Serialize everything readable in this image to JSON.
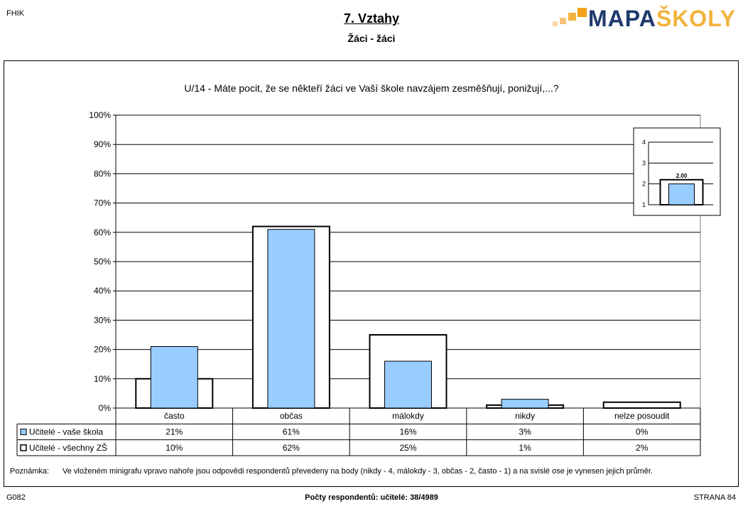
{
  "header": {
    "code": "FHIK",
    "title": "7. Vztahy",
    "subtitle": "Žáci - žáci",
    "logo_part1": "MAPA",
    "logo_part2": "ŠKOLY"
  },
  "question": "U/14 - Máte pocit, že se někteří žáci ve Vaší škole navzájem zesměšňují, ponižují,...?",
  "colors": {
    "series1_fill": "#99ccff",
    "series2_fill": "#ffffff",
    "logo_dark": "#1f3a6b",
    "logo_accent": "#f2b33d"
  },
  "chart_data": [
    {
      "type": "bar",
      "categories": [
        "často",
        "občas",
        "málokdy",
        "nikdy",
        "nelze posoudit"
      ],
      "series": [
        {
          "name": "Učitelé - vaše škola",
          "values": [
            21,
            61,
            16,
            3,
            0
          ],
          "labels": [
            "21%",
            "61%",
            "16%",
            "3%",
            "0%"
          ]
        },
        {
          "name": "Učitelé - všechny ZŠ",
          "values": [
            10,
            62,
            25,
            1,
            2
          ],
          "labels": [
            "10%",
            "62%",
            "25%",
            "1%",
            "2%"
          ]
        }
      ],
      "yticks": [
        "100%",
        "90%",
        "80%",
        "70%",
        "60%",
        "50%",
        "40%",
        "30%",
        "20%",
        "10%",
        "0%"
      ],
      "ylim": [
        0,
        100
      ],
      "grid": true,
      "legend": "data table below chart"
    },
    {
      "type": "bar",
      "series": [
        {
          "name": "Učitelé - vaše škola",
          "values": [
            2.0
          ]
        },
        {
          "name": "Učitelé - všechny ZŠ",
          "values": [
            2.2
          ]
        }
      ],
      "value_label": "2.00",
      "yticks": [
        "4",
        "3",
        "2",
        "1"
      ],
      "ylim": [
        1,
        4
      ],
      "grid": true,
      "legend": "none"
    }
  ],
  "note": {
    "label": "Poznámka:",
    "text": "Ve vloženém minigrafu vpravo nahoře jsou odpovědi respondentů převedeny na body (nikdy - 4, málokdy - 3, občas - 2, často - 1) a na svislé ose je vynesen jejich průměr."
  },
  "footer": {
    "left": "G082",
    "center": "Počty respondentů:   učitelé: 38/4989",
    "right": "STRANA 84"
  }
}
